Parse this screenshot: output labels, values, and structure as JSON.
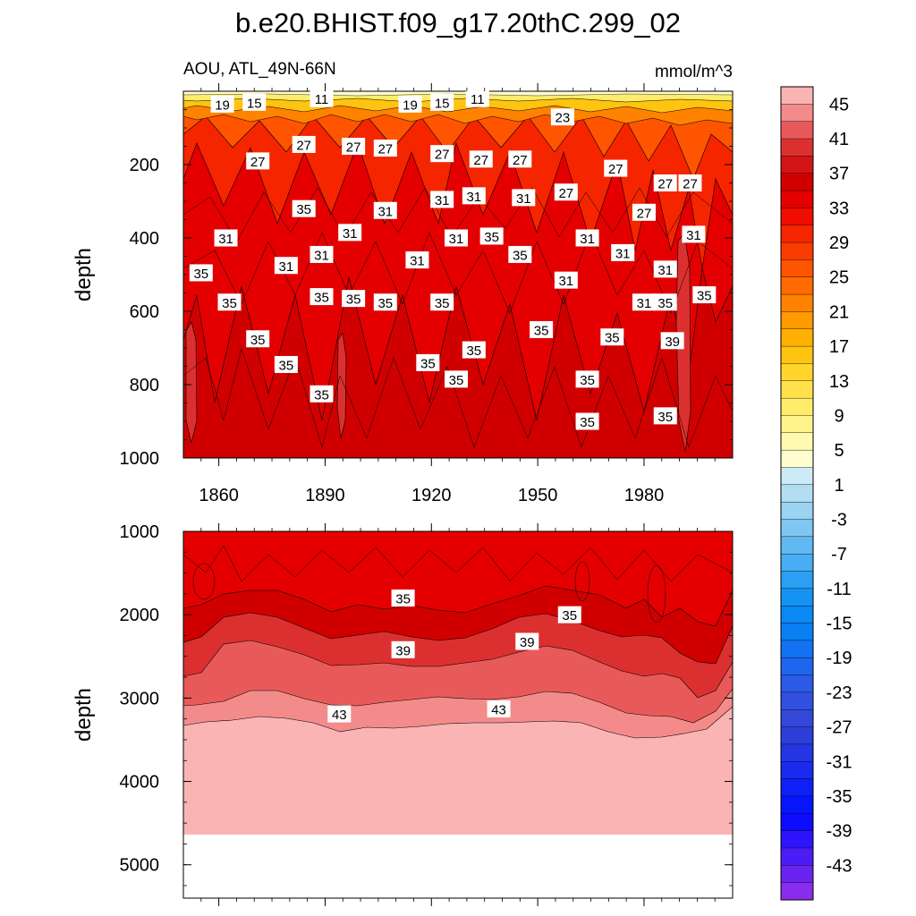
{
  "chart_data": {
    "type": "contour",
    "title": "b.e20.BHIST.f09_g17.20thC.299_02",
    "subtitle_left": "AOU, ATL_49N-66N",
    "subtitle_right": "mmol/m^3",
    "xlim": [
      1850,
      2005
    ],
    "x_ticks": [
      1860,
      1890,
      1920,
      1950,
      1980
    ],
    "upper_panel": {
      "ylabel": "depth",
      "ylim": [
        0,
        1000
      ],
      "y_ticks": [
        200,
        400,
        600,
        800,
        1000
      ],
      "contour_labels": [
        {
          "x": 1861,
          "depth": 35,
          "text": "19"
        },
        {
          "x": 1870,
          "depth": 30,
          "text": "15"
        },
        {
          "x": 1889,
          "depth": 20,
          "text": "11"
        },
        {
          "x": 1914,
          "depth": 35,
          "text": "19"
        },
        {
          "x": 1923,
          "depth": 30,
          "text": "15"
        },
        {
          "x": 1933,
          "depth": 20,
          "text": "11"
        },
        {
          "x": 1957,
          "depth": 70,
          "text": "23"
        },
        {
          "x": 1871,
          "depth": 190,
          "text": "27"
        },
        {
          "x": 1884,
          "depth": 145,
          "text": "27"
        },
        {
          "x": 1898,
          "depth": 150,
          "text": "27"
        },
        {
          "x": 1907,
          "depth": 155,
          "text": "27"
        },
        {
          "x": 1923,
          "depth": 170,
          "text": "27"
        },
        {
          "x": 1934,
          "depth": 185,
          "text": "27"
        },
        {
          "x": 1945,
          "depth": 185,
          "text": "27"
        },
        {
          "x": 1958,
          "depth": 275,
          "text": "27"
        },
        {
          "x": 1972,
          "depth": 210,
          "text": "27"
        },
        {
          "x": 1980,
          "depth": 330,
          "text": "27"
        },
        {
          "x": 1986,
          "depth": 250,
          "text": "27"
        },
        {
          "x": 1993,
          "depth": 250,
          "text": "27"
        },
        {
          "x": 1884,
          "depth": 320,
          "text": "35"
        },
        {
          "x": 1907,
          "depth": 325,
          "text": "31"
        },
        {
          "x": 1923,
          "depth": 295,
          "text": "31"
        },
        {
          "x": 1932,
          "depth": 285,
          "text": "31"
        },
        {
          "x": 1946,
          "depth": 290,
          "text": "31"
        },
        {
          "x": 1862,
          "depth": 400,
          "text": "31"
        },
        {
          "x": 1897,
          "depth": 385,
          "text": "31"
        },
        {
          "x": 1927,
          "depth": 400,
          "text": "31"
        },
        {
          "x": 1937,
          "depth": 395,
          "text": "35"
        },
        {
          "x": 1964,
          "depth": 400,
          "text": "31"
        },
        {
          "x": 1994,
          "depth": 390,
          "text": "31"
        },
        {
          "x": 1855,
          "depth": 495,
          "text": "35"
        },
        {
          "x": 1879,
          "depth": 475,
          "text": "31"
        },
        {
          "x": 1889,
          "depth": 445,
          "text": "31"
        },
        {
          "x": 1916,
          "depth": 460,
          "text": "31"
        },
        {
          "x": 1945,
          "depth": 445,
          "text": "35"
        },
        {
          "x": 1974,
          "depth": 440,
          "text": "31"
        },
        {
          "x": 1986,
          "depth": 485,
          "text": "31"
        },
        {
          "x": 1958,
          "depth": 515,
          "text": "31"
        },
        {
          "x": 1863,
          "depth": 575,
          "text": "35"
        },
        {
          "x": 1889,
          "depth": 560,
          "text": "35"
        },
        {
          "x": 1898,
          "depth": 565,
          "text": "35"
        },
        {
          "x": 1907,
          "depth": 575,
          "text": "35"
        },
        {
          "x": 1923,
          "depth": 575,
          "text": "35"
        },
        {
          "x": 1980,
          "depth": 575,
          "text": "31"
        },
        {
          "x": 1986,
          "depth": 575,
          "text": "35"
        },
        {
          "x": 1997,
          "depth": 555,
          "text": "35"
        },
        {
          "x": 1871,
          "depth": 675,
          "text": "35"
        },
        {
          "x": 1951,
          "depth": 650,
          "text": "35"
        },
        {
          "x": 1971,
          "depth": 670,
          "text": "35"
        },
        {
          "x": 1988,
          "depth": 680,
          "text": "39"
        },
        {
          "x": 1932,
          "depth": 705,
          "text": "35"
        },
        {
          "x": 1879,
          "depth": 745,
          "text": "35"
        },
        {
          "x": 1919,
          "depth": 740,
          "text": "35"
        },
        {
          "x": 1927,
          "depth": 785,
          "text": "35"
        },
        {
          "x": 1964,
          "depth": 785,
          "text": "35"
        },
        {
          "x": 1889,
          "depth": 825,
          "text": "35"
        },
        {
          "x": 1964,
          "depth": 900,
          "text": "35"
        },
        {
          "x": 1986,
          "depth": 885,
          "text": "35"
        }
      ]
    },
    "lower_panel": {
      "ylabel": "depth",
      "ylim": [
        1000,
        5400
      ],
      "y_ticks": [
        1000,
        2000,
        3000,
        4000,
        5000
      ],
      "contour_labels": [
        {
          "x": 1912,
          "depth": 1800,
          "text": "35"
        },
        {
          "x": 1959,
          "depth": 2000,
          "text": "35"
        },
        {
          "x": 1912,
          "depth": 2420,
          "text": "39"
        },
        {
          "x": 1947,
          "depth": 2320,
          "text": "39"
        },
        {
          "x": 1894,
          "depth": 3190,
          "text": "43"
        },
        {
          "x": 1939,
          "depth": 3130,
          "text": "43"
        }
      ]
    },
    "colorbar": {
      "levels": [
        47,
        45,
        43,
        41,
        39,
        37,
        35,
        33,
        31,
        29,
        27,
        25,
        23,
        21,
        19,
        17,
        15,
        13,
        11,
        9,
        7,
        5,
        3,
        1,
        -1,
        -3,
        -5,
        -7,
        -9,
        -11,
        -13,
        -15,
        -17,
        -19,
        -21,
        -23,
        -25,
        -27,
        -29,
        -31,
        -33,
        -35,
        -37,
        -39,
        -41,
        -43,
        -45
      ],
      "tick_labels": [
        "45",
        "41",
        "37",
        "33",
        "29",
        "25",
        "21",
        "17",
        "13",
        "9",
        "5",
        "1",
        "-3",
        "-7",
        "-11",
        "-15",
        "-19",
        "-23",
        "-27",
        "-31",
        "-35",
        "-39",
        "-43"
      ],
      "colors": [
        "#fbb4b4",
        "#f48b8b",
        "#e85a5a",
        "#dc3030",
        "#d41414",
        "#d10000",
        "#e40000",
        "#ee0d00",
        "#f52500",
        "#fa3c00",
        "#ff5400",
        "#ff6b00",
        "#ff8300",
        "#ff9a00",
        "#ffb000",
        "#ffc410",
        "#ffd52c",
        "#ffe24a",
        "#ffec6a",
        "#fff48c",
        "#fffab0",
        "#fffdd0",
        "#ccebf6",
        "#b3def2",
        "#9bd3f2",
        "#7fc6f2",
        "#62b9f2",
        "#48adf2",
        "#2c9ff2",
        "#1593f2",
        "#0a88f3",
        "#0a7ef3",
        "#1273f3",
        "#1e66ee",
        "#2a5ae6",
        "#3250e0",
        "#3448d8",
        "#2e3ed8",
        "#2435e3",
        "#1a2bee",
        "#0f20f6",
        "#0715fb",
        "#0d0cff",
        "#2d14fb",
        "#4c1cf6",
        "#6a24f0",
        "#8a2cec"
      ]
    }
  }
}
